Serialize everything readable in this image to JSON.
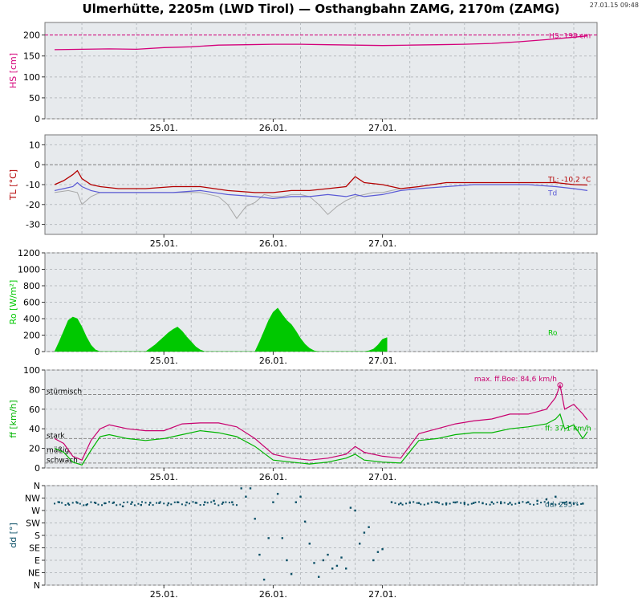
{
  "title": "Ulmerhütte, 2205m (LWD Tirol) — Osthangbahn ZAMG, 2170m (ZAMG)",
  "timestamp": "27.01.15 09:48",
  "colors": {
    "panel_bg": "#e7eaed",
    "hs": "#d4007a",
    "tl": "#b40000",
    "td": "#5a5ad6",
    "tl_gray": "#a8a8a8",
    "ro": "#00c800",
    "ff_boe": "#c8006e",
    "ff": "#00b400",
    "dd": "#0a4f66"
  },
  "chart_data": [
    {
      "type": "line",
      "panel": "hs",
      "ylabel": "HS [cm]",
      "ylim": [
        0,
        230
      ],
      "yticks": [
        0,
        50,
        100,
        150,
        200
      ],
      "xticks": [
        "25.01.",
        "26.01.",
        "27.01."
      ],
      "grid": true,
      "reference_line": 200,
      "annotation": "HS: 198 cm",
      "series": [
        {
          "name": "HS",
          "x_hours": [
            0,
            6,
            12,
            18,
            24,
            30,
            36,
            42,
            48,
            54,
            60,
            66,
            72,
            78,
            84,
            90,
            96,
            102,
            108,
            114,
            117
          ],
          "values": [
            165,
            166,
            167,
            166,
            170,
            172,
            176,
            177,
            178,
            178,
            177,
            176,
            175,
            176,
            177,
            178,
            180,
            184,
            189,
            195,
            198
          ]
        }
      ]
    },
    {
      "type": "line",
      "panel": "tl",
      "ylabel": "TL [°C]",
      "ylim": [
        -35,
        15
      ],
      "yticks": [
        -30,
        -20,
        -10,
        0,
        10
      ],
      "xticks": [
        "25.01.",
        "26.01.",
        "27.01."
      ],
      "grid": true,
      "reference_line": 0,
      "annotation": "TL: -10,2 °C",
      "series_label": "Td",
      "series": [
        {
          "name": "TL",
          "x_hours": [
            0,
            2,
            4,
            5,
            6,
            8,
            10,
            14,
            20,
            26,
            32,
            38,
            44,
            48,
            52,
            56,
            60,
            64,
            66,
            68,
            72,
            76,
            80,
            86,
            92,
            98,
            104,
            110,
            114,
            117
          ],
          "values": [
            -10,
            -8,
            -5,
            -3,
            -7,
            -10,
            -11,
            -12,
            -12,
            -11,
            -11,
            -13,
            -14,
            -14,
            -13,
            -13,
            -12,
            -11,
            -6,
            -9,
            -10,
            -12,
            -11,
            -9,
            -9,
            -9,
            -9,
            -9,
            -10,
            -10.2
          ]
        },
        {
          "name": "Td",
          "x_hours": [
            0,
            2,
            4,
            5,
            6,
            8,
            10,
            14,
            20,
            26,
            32,
            38,
            44,
            48,
            52,
            56,
            60,
            64,
            66,
            68,
            72,
            76,
            80,
            86,
            92,
            98,
            104,
            110,
            114,
            117
          ],
          "values": [
            -13,
            -12,
            -11,
            -9,
            -11,
            -13,
            -14,
            -14,
            -14,
            -14,
            -13,
            -15,
            -16,
            -17,
            -16,
            -16,
            -15,
            -16,
            -15,
            -16,
            -15,
            -13,
            -12,
            -11,
            -10,
            -10,
            -10,
            -11,
            -12,
            -13
          ]
        },
        {
          "name": "TL-2",
          "x_hours": [
            0,
            3,
            5,
            6,
            8,
            10,
            12,
            16,
            20,
            26,
            32,
            36,
            38,
            40,
            42,
            44,
            46,
            48,
            50,
            52,
            54,
            56,
            58,
            60,
            62,
            64,
            66,
            68,
            70,
            72,
            74,
            76
          ],
          "values": [
            -14,
            -13,
            -14,
            -20,
            -16,
            -14,
            -14,
            -14,
            -14,
            -14,
            -14,
            -16,
            -20,
            -27,
            -21,
            -19,
            -15,
            -16,
            -16,
            -15,
            -15,
            -16,
            -20,
            -25,
            -21,
            -18,
            -16,
            -15,
            -14,
            -14,
            -13,
            -12
          ]
        }
      ]
    },
    {
      "type": "area",
      "panel": "ro",
      "ylabel": "Ro [W/m²]",
      "ylim": [
        0,
        1200
      ],
      "yticks": [
        0,
        200,
        400,
        600,
        800,
        1000,
        1200
      ],
      "xticks": [
        "25.01.",
        "26.01.",
        "27.01."
      ],
      "grid": true,
      "series_label": "Ro",
      "series": [
        {
          "name": "Ro",
          "x_hours": [
            0,
            1,
            2,
            3,
            4,
            5,
            6,
            7,
            8,
            9,
            10,
            20,
            21,
            22,
            23,
            24,
            25,
            26,
            27,
            28,
            29,
            30,
            31,
            32,
            33,
            44,
            45,
            46,
            47,
            48,
            49,
            50,
            51,
            52,
            53,
            54,
            55,
            56,
            57,
            58,
            68,
            69,
            70,
            71,
            72,
            73
          ],
          "values": [
            0,
            120,
            250,
            380,
            420,
            400,
            300,
            180,
            80,
            20,
            0,
            0,
            40,
            80,
            130,
            180,
            230,
            270,
            300,
            250,
            180,
            120,
            60,
            20,
            0,
            0,
            120,
            250,
            380,
            480,
            530,
            450,
            380,
            330,
            250,
            160,
            90,
            40,
            10,
            0,
            0,
            10,
            30,
            80,
            150,
            170
          ]
        }
      ]
    },
    {
      "type": "line",
      "panel": "ff",
      "ylabel": "ff [km/h]",
      "ylim": [
        0,
        100
      ],
      "yticks": [
        0,
        20,
        40,
        60,
        80,
        100
      ],
      "xticks": [
        "25.01.",
        "26.01.",
        "27.01."
      ],
      "grid": true,
      "thresholds": [
        {
          "label": "stürmisch",
          "value": 75
        },
        {
          "label": "stark",
          "value": 30
        },
        {
          "label": "mäßig",
          "value": 15
        },
        {
          "label": "schwach",
          "value": 5
        }
      ],
      "annotation_max": "max. ff.Boe: 84,6 km/h",
      "annotation_ff": "ff: 37,1 km/h",
      "max_point": {
        "x_hours": 111,
        "value": 84.6
      },
      "series": [
        {
          "name": "ff.Boe",
          "x_hours": [
            0,
            2,
            4,
            6,
            8,
            10,
            12,
            16,
            20,
            24,
            28,
            32,
            36,
            40,
            44,
            48,
            52,
            56,
            60,
            64,
            66,
            68,
            72,
            76,
            80,
            84,
            88,
            92,
            96,
            100,
            104,
            108,
            110,
            111,
            112,
            114,
            116,
            117
          ],
          "values": [
            30,
            25,
            12,
            8,
            28,
            40,
            44,
            40,
            38,
            38,
            45,
            46,
            46,
            42,
            30,
            14,
            10,
            8,
            10,
            14,
            22,
            16,
            12,
            10,
            35,
            40,
            45,
            48,
            50,
            55,
            55,
            60,
            72,
            84.6,
            60,
            65,
            55,
            49
          ]
        },
        {
          "name": "ff",
          "x_hours": [
            0,
            2,
            4,
            6,
            8,
            10,
            12,
            16,
            20,
            24,
            28,
            32,
            36,
            40,
            44,
            48,
            52,
            56,
            60,
            64,
            66,
            68,
            72,
            76,
            80,
            84,
            88,
            92,
            96,
            100,
            104,
            108,
            110,
            111,
            112,
            114,
            116,
            117
          ],
          "values": [
            20,
            16,
            6,
            3,
            18,
            32,
            34,
            30,
            28,
            30,
            34,
            38,
            36,
            32,
            22,
            8,
            6,
            4,
            6,
            10,
            14,
            8,
            6,
            5,
            28,
            30,
            34,
            36,
            36,
            40,
            42,
            45,
            50,
            55,
            40,
            44,
            30,
            37.1
          ]
        }
      ]
    },
    {
      "type": "scatter",
      "panel": "dd",
      "ylabel": "dd [°]",
      "ylim": [
        0,
        360
      ],
      "yticks": [
        "N",
        "NE",
        "E",
        "SE",
        "S",
        "SW",
        "W",
        "NW",
        "N"
      ],
      "ytick_values": [
        0,
        45,
        90,
        135,
        180,
        225,
        270,
        315,
        360
      ],
      "xticks": [
        "25.01.",
        "26.01.",
        "27.01."
      ],
      "grid": true,
      "annotation": "dd: 295 °",
      "series": [
        {
          "name": "dd",
          "x_hours": [
            1,
            3,
            5,
            7,
            9,
            11,
            13,
            15,
            17,
            19,
            21,
            23,
            25,
            27,
            29,
            31,
            33,
            35,
            37,
            39,
            41,
            42,
            43,
            44,
            45,
            46,
            47,
            48,
            49,
            50,
            51,
            52,
            53,
            54,
            55,
            56,
            57,
            58,
            59,
            60,
            61,
            62,
            63,
            64,
            65,
            66,
            67,
            68,
            69,
            70,
            71,
            72,
            74,
            76,
            78,
            80,
            82,
            84,
            86,
            88,
            90,
            92,
            94,
            96,
            98,
            100,
            102,
            104,
            106,
            108,
            110,
            112,
            114,
            116
          ],
          "values": [
            300,
            295,
            298,
            290,
            297,
            296,
            299,
            285,
            300,
            290,
            298,
            297,
            296,
            300,
            299,
            298,
            300,
            305,
            299,
            300,
            350,
            320,
            350,
            240,
            110,
            20,
            170,
            300,
            330,
            170,
            90,
            40,
            300,
            320,
            230,
            150,
            80,
            30,
            90,
            110,
            60,
            70,
            100,
            60,
            280,
            270,
            150,
            190,
            210,
            90,
            120,
            130,
            300,
            296,
            298,
            297,
            295,
            300,
            296,
            299,
            298,
            297,
            296,
            300,
            296,
            298,
            297,
            300,
            305,
            310,
            320,
            298,
            296,
            295
          ]
        }
      ]
    }
  ]
}
